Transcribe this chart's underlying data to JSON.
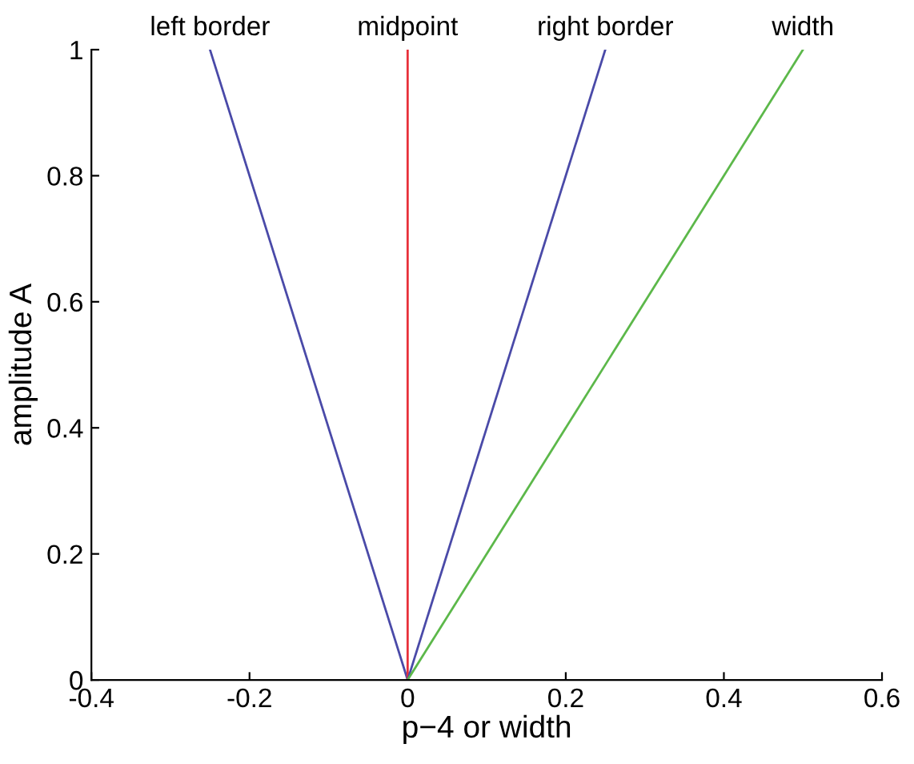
{
  "chart_data": {
    "type": "line",
    "xlabel": "p−4 or width",
    "ylabel": "amplitude A",
    "series": [
      {
        "name": "left border",
        "color": "#4a4aa8",
        "x": [
          0,
          -0.25
        ],
        "values": [
          0,
          1
        ]
      },
      {
        "name": "midpoint",
        "color": "#e8303a",
        "x": [
          0,
          0
        ],
        "values": [
          0,
          1
        ]
      },
      {
        "name": "right border",
        "color": "#4a4aa8",
        "x": [
          0,
          0.25
        ],
        "values": [
          0,
          1
        ]
      },
      {
        "name": "width",
        "color": "#5cb84a",
        "x": [
          0,
          0.5
        ],
        "values": [
          0,
          1
        ]
      }
    ],
    "xlim": [
      -0.4,
      0.6
    ],
    "xticks": [
      -0.4,
      -0.2,
      0,
      0.2,
      0.4,
      0.6
    ],
    "ylim": [
      0,
      1
    ],
    "yticks": [
      0,
      0.2,
      0.4,
      0.6,
      0.8,
      1
    ],
    "grid": false,
    "legend": false,
    "marker": "none",
    "line_style": "solid"
  }
}
